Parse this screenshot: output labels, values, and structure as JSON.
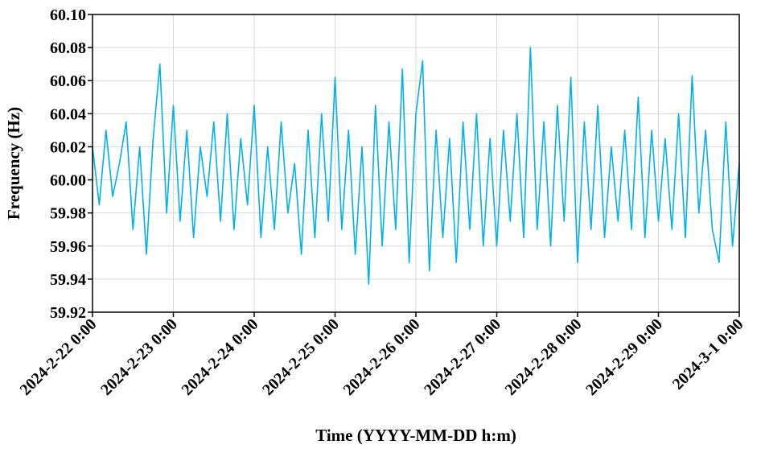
{
  "chart_data": {
    "type": "line",
    "x_label": "Time (YYYY-MM-DD h:m)",
    "y_label": "Frequency (Hz)",
    "color": "#00b0f0",
    "grid": true,
    "xlim": [
      "2024-2-22 0:00",
      "2024-3-1 0:00"
    ],
    "xticks": [
      "2024-2-22 0:00",
      "2024-2-23 0:00",
      "2024-2-24 0:00",
      "2024-2-25 0:00",
      "2024-2-26 0:00",
      "2024-2-27 0:00",
      "2024-2-28 0:00",
      "2024-2-29 0:00",
      "2024-3-1 0:00"
    ],
    "ylim": [
      59.92,
      60.1
    ],
    "yticks": [
      59.92,
      59.94,
      59.96,
      59.98,
      {
        "value": 60,
        "label": "60.00"
      },
      60.02,
      60.04,
      60.06,
      60.08,
      {
        "value": 60.1,
        "label": "60.10"
      }
    ],
    "x": [
      "2024-2-22 0:00",
      "2024-2-22 2:00",
      "2024-2-22 4:00",
      "2024-2-22 6:00",
      "2024-2-22 8:00",
      "2024-2-22 10:00",
      "2024-2-22 12:00",
      "2024-2-22 14:00",
      "2024-2-22 16:00",
      "2024-2-22 18:00",
      "2024-2-22 20:00",
      "2024-2-22 22:00",
      "2024-2-23 0:00",
      "2024-2-23 2:00",
      "2024-2-23 4:00",
      "2024-2-23 6:00",
      "2024-2-23 8:00",
      "2024-2-23 10:00",
      "2024-2-23 12:00",
      "2024-2-23 14:00",
      "2024-2-23 16:00",
      "2024-2-23 18:00",
      "2024-2-23 20:00",
      "2024-2-23 22:00",
      "2024-2-24 0:00",
      "2024-2-24 2:00",
      "2024-2-24 4:00",
      "2024-2-24 6:00",
      "2024-2-24 8:00",
      "2024-2-24 10:00",
      "2024-2-24 12:00",
      "2024-2-24 14:00",
      "2024-2-24 16:00",
      "2024-2-24 18:00",
      "2024-2-24 20:00",
      "2024-2-24 22:00",
      "2024-2-25 0:00",
      "2024-2-25 2:00",
      "2024-2-25 4:00",
      "2024-2-25 6:00",
      "2024-2-25 8:00",
      "2024-2-25 10:00",
      "2024-2-25 12:00",
      "2024-2-25 14:00",
      "2024-2-25 16:00",
      "2024-2-25 18:00",
      "2024-2-25 20:00",
      "2024-2-25 22:00",
      "2024-2-26 0:00",
      "2024-2-26 2:00",
      "2024-2-26 4:00",
      "2024-2-26 6:00",
      "2024-2-26 8:00",
      "2024-2-26 10:00",
      "2024-2-26 12:00",
      "2024-2-26 14:00",
      "2024-2-26 16:00",
      "2024-2-26 18:00",
      "2024-2-26 20:00",
      "2024-2-26 22:00",
      "2024-2-27 0:00",
      "2024-2-27 2:00",
      "2024-2-27 4:00",
      "2024-2-27 6:00",
      "2024-2-27 8:00",
      "2024-2-27 10:00",
      "2024-2-27 12:00",
      "2024-2-27 14:00",
      "2024-2-27 16:00",
      "2024-2-27 18:00",
      "2024-2-27 20:00",
      "2024-2-27 22:00",
      "2024-2-28 0:00",
      "2024-2-28 2:00",
      "2024-2-28 4:00",
      "2024-2-28 6:00",
      "2024-2-28 8:00",
      "2024-2-28 10:00",
      "2024-2-28 12:00",
      "2024-2-28 14:00",
      "2024-2-28 16:00",
      "2024-2-28 18:00",
      "2024-2-28 20:00",
      "2024-2-28 22:00",
      "2024-2-29 0:00",
      "2024-2-29 2:00",
      "2024-2-29 4:00",
      "2024-2-29 6:00",
      "2024-2-29 8:00",
      "2024-2-29 10:00",
      "2024-2-29 12:00",
      "2024-2-29 14:00",
      "2024-2-29 16:00",
      "2024-2-29 18:00",
      "2024-2-29 20:00",
      "2024-2-29 22:00",
      "2024-3-1 0:00"
    ],
    "values": [
      60.02,
      59.985,
      60.03,
      59.99,
      60.01,
      60.035,
      59.97,
      60.02,
      59.955,
      60.025,
      60.07,
      59.98,
      60.045,
      59.975,
      60.03,
      59.965,
      60.02,
      59.99,
      60.035,
      59.975,
      60.04,
      59.97,
      60.025,
      59.985,
      60.045,
      59.965,
      60.02,
      59.97,
      60.035,
      59.98,
      60.01,
      59.955,
      60.03,
      59.965,
      60.04,
      59.975,
      60.062,
      59.97,
      60.03,
      59.955,
      60.02,
      59.937,
      60.045,
      59.96,
      60.035,
      59.97,
      60.067,
      59.95,
      60.04,
      60.072,
      59.945,
      60.03,
      59.965,
      60.025,
      59.95,
      60.035,
      59.97,
      60.04,
      59.96,
      60.025,
      59.96,
      60.03,
      59.975,
      60.04,
      59.965,
      60.08,
      59.97,
      60.035,
      59.96,
      60.045,
      59.975,
      60.062,
      59.95,
      60.035,
      59.97,
      60.045,
      59.965,
      60.02,
      59.975,
      60.03,
      59.97,
      60.05,
      59.965,
      60.03,
      59.975,
      60.025,
      59.97,
      60.04,
      59.965,
      60.063,
      59.98,
      60.03,
      59.97,
      59.95,
      60.035,
      59.96,
      60.01
    ]
  }
}
